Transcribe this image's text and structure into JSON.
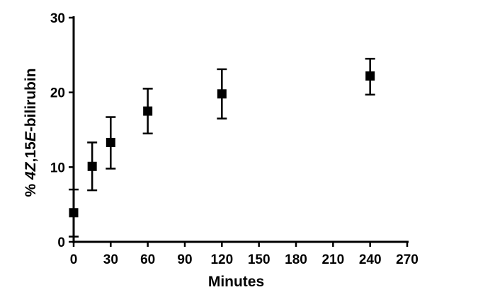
{
  "chart_data": {
    "type": "scatter",
    "title": "",
    "xlabel": "Minutes",
    "ylabel": {
      "parts": [
        {
          "text": "% ",
          "italic": false
        },
        {
          "text": "4Z",
          "italic": true
        },
        {
          "text": ",15",
          "italic": false
        },
        {
          "text": "E",
          "italic": true
        },
        {
          "text": "-bilirubin",
          "italic": false
        }
      ]
    },
    "xlim": [
      0,
      270
    ],
    "ylim": [
      0,
      30
    ],
    "xticks": [
      "0",
      "30",
      "60",
      "90",
      "120",
      "150",
      "180",
      "210",
      "240",
      "270"
    ],
    "yticks": [
      "0",
      "10",
      "20",
      "30"
    ],
    "grid": false,
    "marker": "square",
    "series": [
      {
        "points": [
          {
            "x": 0,
            "y": 3.9,
            "err_low": 0.7,
            "err_high": 7.0
          },
          {
            "x": 15,
            "y": 10.1,
            "err_low": 6.9,
            "err_high": 13.3
          },
          {
            "x": 30,
            "y": 13.3,
            "err_low": 9.8,
            "err_high": 16.7
          },
          {
            "x": 60,
            "y": 17.5,
            "err_low": 14.5,
            "err_high": 20.5
          },
          {
            "x": 120,
            "y": 19.8,
            "err_low": 16.5,
            "err_high": 23.1
          },
          {
            "x": 240,
            "y": 22.2,
            "err_low": 19.7,
            "err_high": 24.5
          }
        ]
      }
    ]
  }
}
